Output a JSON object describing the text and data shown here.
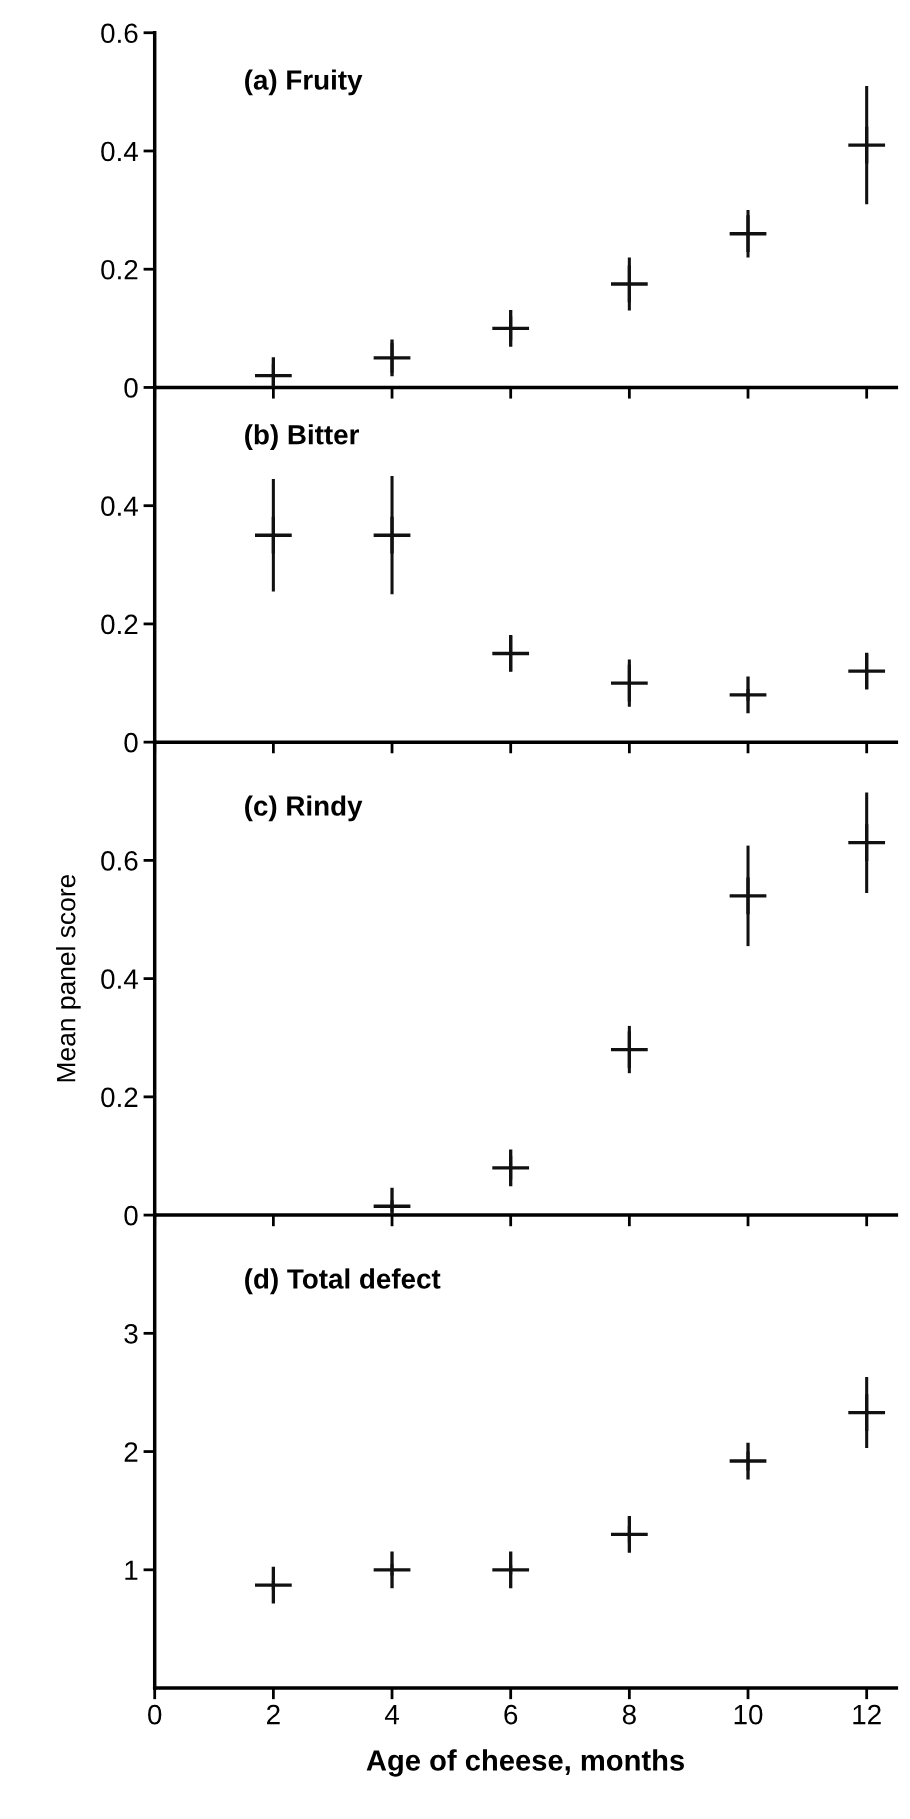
{
  "chart_data": [
    {
      "type": "scatter",
      "title": "(a) Fruity",
      "x": [
        2,
        4,
        6,
        8,
        10,
        12
      ],
      "values": [
        0.02,
        0.05,
        0.1,
        0.175,
        0.26,
        0.41
      ],
      "errors": [
        0.02,
        0.025,
        0.02,
        0.045,
        0.04,
        0.1
      ],
      "color": "#111111",
      "marker": "cross",
      "xlim": [
        0,
        12.5
      ],
      "ylim": [
        0,
        0.6
      ],
      "xticks": [
        {
          "value": 0,
          "label": null
        },
        {
          "value": 2,
          "label": null
        },
        {
          "value": 4,
          "label": null
        },
        {
          "value": 6,
          "label": null
        },
        {
          "value": 8,
          "label": null
        },
        {
          "value": 10,
          "label": null
        },
        {
          "value": 12,
          "label": null
        }
      ],
      "yticks": [
        0,
        0.2,
        0.4,
        0.6
      ],
      "tick_labels": "y"
    },
    {
      "type": "scatter",
      "title": "(b) Bitter",
      "x": [
        2,
        4,
        6,
        8,
        10,
        12
      ],
      "values": [
        0.35,
        0.35,
        0.15,
        0.1,
        0.08,
        0.12
      ],
      "errors": [
        0.095,
        0.1,
        0.03,
        0.04,
        0.01,
        0.03
      ],
      "color": "#111111",
      "marker": "cross",
      "xlim": [
        0,
        12.5
      ],
      "ylim": [
        0,
        0.6
      ],
      "xticks": [
        {
          "value": 0,
          "label": null
        },
        {
          "value": 2,
          "label": null
        },
        {
          "value": 4,
          "label": null
        },
        {
          "value": 6,
          "label": null
        },
        {
          "value": 8,
          "label": null
        },
        {
          "value": 10,
          "label": null
        },
        {
          "value": 12,
          "label": null
        }
      ],
      "yticks": [
        0,
        0.2,
        0.4
      ],
      "tick_labels": "y"
    },
    {
      "type": "scatter",
      "title": "(c) Rindy",
      "ylabel": "Mean panel score",
      "x": [
        4,
        6,
        8,
        10,
        12
      ],
      "values": [
        0.015,
        0.08,
        0.28,
        0.54,
        0.63
      ],
      "errors": [
        0.01,
        0.02,
        0.04,
        0.085,
        0.085
      ],
      "color": "#111111",
      "marker": "cross",
      "xlim": [
        0,
        12.5
      ],
      "ylim": [
        0,
        0.8
      ],
      "xticks": [
        {
          "value": 0,
          "label": null
        },
        {
          "value": 2,
          "label": null
        },
        {
          "value": 4,
          "label": null
        },
        {
          "value": 6,
          "label": null
        },
        {
          "value": 8,
          "label": null
        },
        {
          "value": 10,
          "label": null
        },
        {
          "value": 12,
          "label": null
        }
      ],
      "yticks": [
        0,
        0.2,
        0.4,
        0.6
      ],
      "tick_labels": "y"
    },
    {
      "type": "scatter",
      "title": "(d) Total defect",
      "xlabel": "Age of cheese, months",
      "x": [
        2,
        4,
        6,
        8,
        10,
        12
      ],
      "values": [
        0.87,
        1.0,
        1.0,
        1.3,
        1.92,
        2.33
      ],
      "errors": [
        0.04,
        0.05,
        0.04,
        0.07,
        0.08,
        0.3
      ],
      "color": "#111111",
      "marker": "cross",
      "xlim": [
        0,
        12.5
      ],
      "ylim": [
        0,
        4
      ],
      "xticks": [
        0,
        2,
        4,
        6,
        8,
        10,
        12
      ],
      "yticks": [
        1,
        2,
        3
      ]
    }
  ]
}
